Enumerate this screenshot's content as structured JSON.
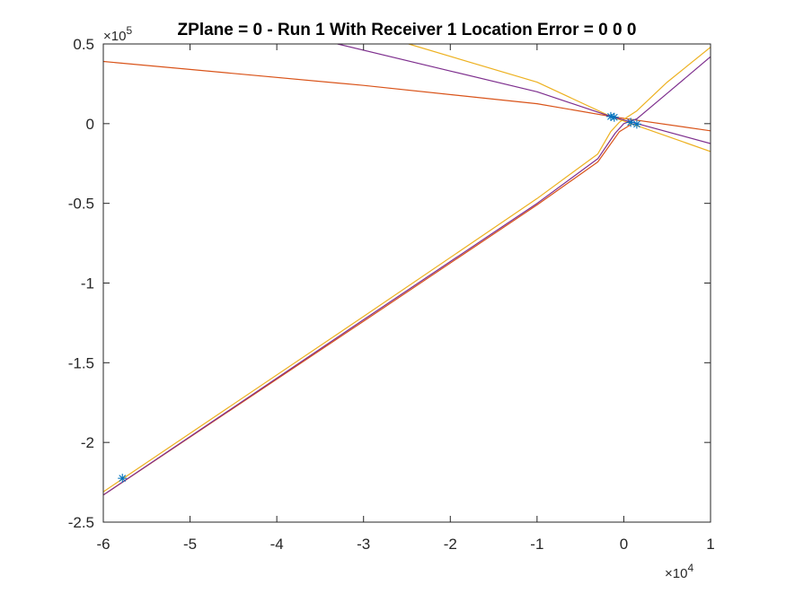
{
  "chart_data": {
    "type": "line",
    "title": "ZPlane = 0 - Run 1 With Receiver 1 Location Error = 0  0  0",
    "xlabel": "",
    "ylabel": "",
    "xlim": [
      -60000,
      10000
    ],
    "ylim": [
      -250000,
      50000
    ],
    "x_multiplier": "10",
    "x_exponent": "4",
    "y_multiplier": "10",
    "y_exponent": "5",
    "x_ticks": [
      {
        "value": -60000,
        "label": "-6"
      },
      {
        "value": -50000,
        "label": "-5"
      },
      {
        "value": -40000,
        "label": "-4"
      },
      {
        "value": -30000,
        "label": "-3"
      },
      {
        "value": -20000,
        "label": "-2"
      },
      {
        "value": -10000,
        "label": "-1"
      },
      {
        "value": 0,
        "label": "0"
      },
      {
        "value": 10000,
        "label": "1"
      }
    ],
    "y_ticks": [
      {
        "value": -250000,
        "label": "-2.5"
      },
      {
        "value": -200000,
        "label": "-2"
      },
      {
        "value": -150000,
        "label": "-1.5"
      },
      {
        "value": -100000,
        "label": "-1"
      },
      {
        "value": -50000,
        "label": "-0.5"
      },
      {
        "value": 0,
        "label": "0"
      },
      {
        "value": 50000,
        "label": "0.5"
      }
    ],
    "grid": false,
    "legend": "none",
    "colors": {
      "axes": "#262626",
      "marker": "#0072BD",
      "red": "#D95319",
      "yellow": "#EDB120",
      "purple": "#7E2F8E"
    },
    "markers": [
      {
        "x": -57800,
        "y": -222500
      },
      {
        "x": -1500,
        "y": 4500
      },
      {
        "x": -1100,
        "y": 4000
      },
      {
        "x": 800,
        "y": 800
      },
      {
        "x": 1500,
        "y": -300
      }
    ],
    "series": [
      {
        "color": "#D95319",
        "x": [
          -60000,
          -30000,
          -10000,
          -1500,
          10000
        ],
        "y": [
          39000,
          24000,
          12500,
          4500,
          -4500
        ]
      },
      {
        "color": "#D95319",
        "x": [
          -60000,
          -30000,
          -10000,
          -3000,
          -500,
          1000
        ],
        "y": [
          -233000,
          -124000,
          -51000,
          -24000,
          -5000,
          0
        ]
      },
      {
        "color": "#EDB120",
        "x": [
          -24800,
          -10000,
          -1500,
          10000
        ],
        "y": [
          50000,
          26000,
          4500,
          -17500
        ]
      },
      {
        "color": "#EDB120",
        "x": [
          -60000,
          -30000,
          -10000,
          -3000,
          -1500,
          -500,
          1500,
          5000,
          10000
        ],
        "y": [
          -231000,
          -121000,
          -47000,
          -19000,
          -5000,
          1000,
          8000,
          26000,
          48000
        ]
      },
      {
        "color": "#7E2F8E",
        "x": [
          -33000,
          -20000,
          -10000,
          -1500,
          10000
        ],
        "y": [
          50000,
          33000,
          20000,
          4500,
          -12500
        ]
      },
      {
        "color": "#7E2F8E",
        "x": [
          -60000,
          -30000,
          -10000,
          -3000,
          -1000,
          0,
          1500,
          5000,
          10000
        ],
        "y": [
          -233000,
          -123000,
          -50000,
          -22000,
          -6000,
          0,
          3000,
          19000,
          42000
        ]
      }
    ]
  }
}
